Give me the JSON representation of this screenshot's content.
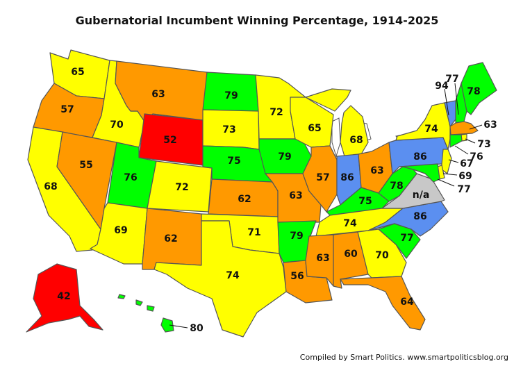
{
  "title": "Gubernatorial Incumbent Winning Percentage, 1914-2025",
  "credit": "Compiled by Smart Politics. www.smartpoliticsblog.org",
  "colors": {
    "red": "#ff0000",
    "orange": "#ff9900",
    "yellow": "#ffff00",
    "green": "#00ff00",
    "blue": "#5b8ff0",
    "gray": "#c8c8c8"
  },
  "states": {
    "WA": {
      "value": "65",
      "color": "yellow"
    },
    "OR": {
      "value": "57",
      "color": "orange"
    },
    "CA": {
      "value": "68",
      "color": "yellow"
    },
    "ID": {
      "value": "70",
      "color": "yellow"
    },
    "NV": {
      "value": "55",
      "color": "orange"
    },
    "MT": {
      "value": "63",
      "color": "orange"
    },
    "WY": {
      "value": "52",
      "color": "red"
    },
    "UT": {
      "value": "76",
      "color": "green"
    },
    "AZ": {
      "value": "69",
      "color": "yellow"
    },
    "CO": {
      "value": "72",
      "color": "yellow"
    },
    "NM": {
      "value": "62",
      "color": "orange"
    },
    "ND": {
      "value": "79",
      "color": "green"
    },
    "SD": {
      "value": "73",
      "color": "yellow"
    },
    "NE": {
      "value": "75",
      "color": "green"
    },
    "KS": {
      "value": "62",
      "color": "orange"
    },
    "OK": {
      "value": "71",
      "color": "yellow"
    },
    "TX": {
      "value": "74",
      "color": "yellow"
    },
    "MN": {
      "value": "72",
      "color": "yellow"
    },
    "IA": {
      "value": "79",
      "color": "green"
    },
    "MO": {
      "value": "63",
      "color": "orange"
    },
    "AR": {
      "value": "79",
      "color": "green"
    },
    "LA": {
      "value": "56",
      "color": "orange"
    },
    "WI": {
      "value": "65",
      "color": "yellow"
    },
    "IL": {
      "value": "57",
      "color": "orange"
    },
    "MI": {
      "value": "68",
      "color": "yellow"
    },
    "IN": {
      "value": "86",
      "color": "blue"
    },
    "OH": {
      "value": "63",
      "color": "orange"
    },
    "KY": {
      "value": "75",
      "color": "green"
    },
    "TN": {
      "value": "74",
      "color": "yellow"
    },
    "MS": {
      "value": "63",
      "color": "orange"
    },
    "AL": {
      "value": "60",
      "color": "orange"
    },
    "GA": {
      "value": "70",
      "color": "yellow"
    },
    "FL": {
      "value": "64",
      "color": "orange"
    },
    "SC": {
      "value": "77",
      "color": "green"
    },
    "NC": {
      "value": "86",
      "color": "blue"
    },
    "VA": {
      "value": "n/a",
      "color": "gray"
    },
    "WV": {
      "value": "78",
      "color": "green"
    },
    "PA": {
      "value": "86",
      "color": "blue"
    },
    "NY": {
      "value": "74",
      "color": "yellow"
    },
    "VT": {
      "value": "94",
      "color": "blue"
    },
    "NH": {
      "value": "77",
      "color": "green"
    },
    "ME": {
      "value": "78",
      "color": "green"
    },
    "MA": {
      "value": "63",
      "color": "orange"
    },
    "RI": {
      "value": "73",
      "color": "yellow"
    },
    "CT": {
      "value": "76",
      "color": "green"
    },
    "NJ": {
      "value": "67",
      "color": "yellow"
    },
    "DE": {
      "value": "69",
      "color": "yellow"
    },
    "MD": {
      "value": "77",
      "color": "green"
    },
    "AK": {
      "value": "42",
      "color": "red"
    },
    "HI": {
      "value": "80",
      "color": "green"
    }
  }
}
